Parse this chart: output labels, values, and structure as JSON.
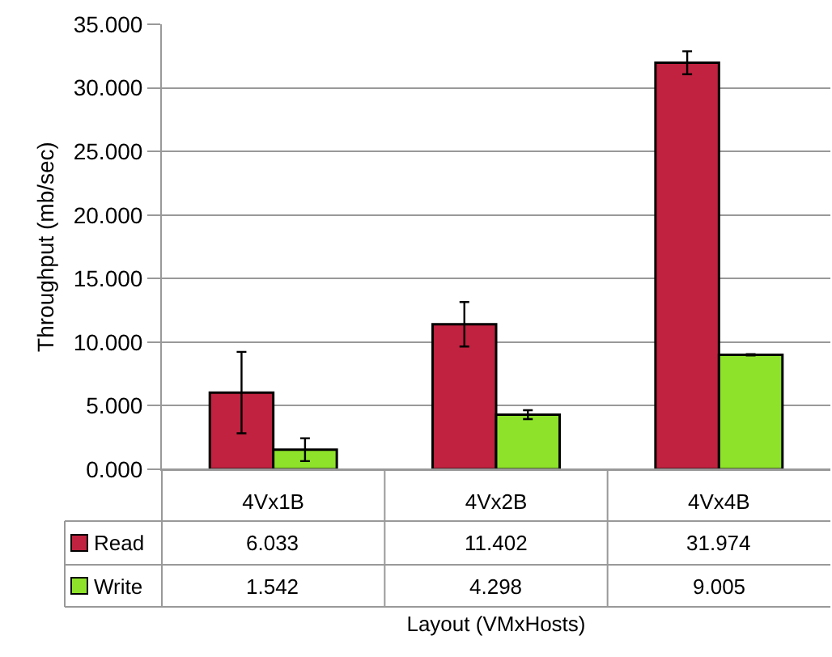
{
  "chart_data": {
    "type": "bar",
    "categories": [
      "4Vx1B",
      "4Vx2B",
      "4Vx4B"
    ],
    "series": [
      {
        "name": "Read",
        "color": "#c0223f",
        "values": [
          6.033,
          11.402,
          31.974
        ],
        "errors": [
          3.2,
          1.75,
          0.9
        ]
      },
      {
        "name": "Write",
        "color": "#8ee32a",
        "values": [
          1.542,
          4.298,
          9.005
        ],
        "errors": [
          0.9,
          0.35,
          0.05
        ]
      }
    ],
    "ylim": [
      0,
      35
    ],
    "yticks": [
      {
        "value": 0,
        "label": "0.000"
      },
      {
        "value": 5,
        "label": "5.000"
      },
      {
        "value": 10,
        "label": "10.000"
      },
      {
        "value": 15,
        "label": "15.000"
      },
      {
        "value": 20,
        "label": "20.000"
      },
      {
        "value": 25,
        "label": "25.000"
      },
      {
        "value": 30,
        "label": "30.000"
      },
      {
        "value": 35,
        "label": "35.000"
      }
    ],
    "ylabel": "Throughput (mb/sec)",
    "xlabel": "Layout (VMxHosts)",
    "grid": "y",
    "data_labels": true,
    "legend": "bottom left"
  }
}
